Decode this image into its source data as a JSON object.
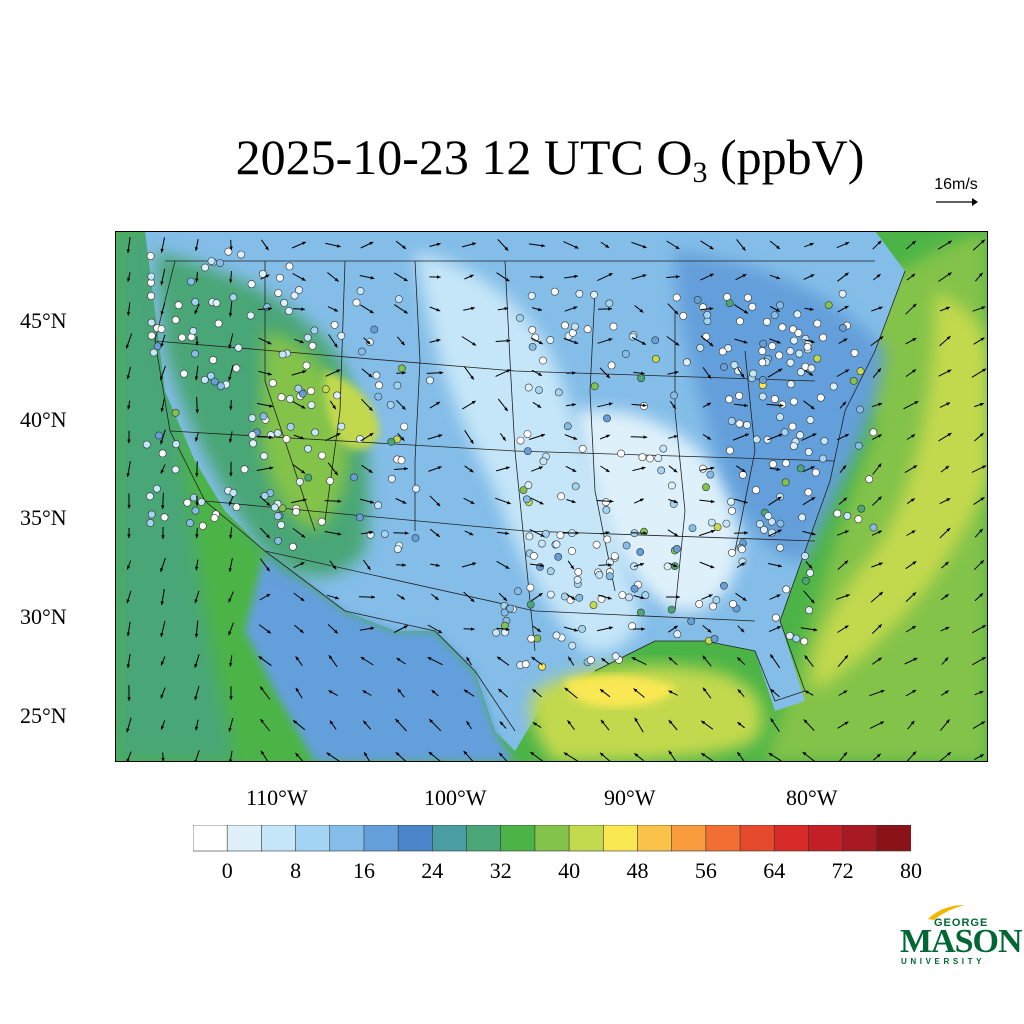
{
  "title": {
    "main": "2025-10-23 12 UTC O",
    "subscript": "3",
    "units": " (ppbV)"
  },
  "reference_vector": {
    "label": "16m/s"
  },
  "map": {
    "lat_labels": [
      "45°N",
      "40°N",
      "35°N",
      "30°N",
      "25°N"
    ],
    "lon_labels": [
      "110°W",
      "100°W",
      "90°W",
      "80°W"
    ]
  },
  "colorbar": {
    "labels": [
      "0",
      "8",
      "16",
      "24",
      "32",
      "40",
      "48",
      "56",
      "64",
      "72",
      "80"
    ],
    "colors": [
      "#ffffff",
      "#def1fb",
      "#c5e6f8",
      "#a4d4f3",
      "#83bde8",
      "#649fda",
      "#4a86c9",
      "#4a9da3",
      "#4aa676",
      "#4cb447",
      "#83c34a",
      "#c3d94e",
      "#f9e852",
      "#fbc24b",
      "#f99c3e",
      "#f16f33",
      "#e54a2d",
      "#d92a2a",
      "#c21f26",
      "#a81a22",
      "#8b1318"
    ]
  },
  "logo": {
    "line1": "GEORGE",
    "line2": "MASON",
    "line3": "UNIVERSITY"
  },
  "legend_colors": {
    "ocean": "#4cb447",
    "land_low": "#c5e6f8",
    "land_mid": "#649fda",
    "gulf_high": "#c3d94e"
  }
}
